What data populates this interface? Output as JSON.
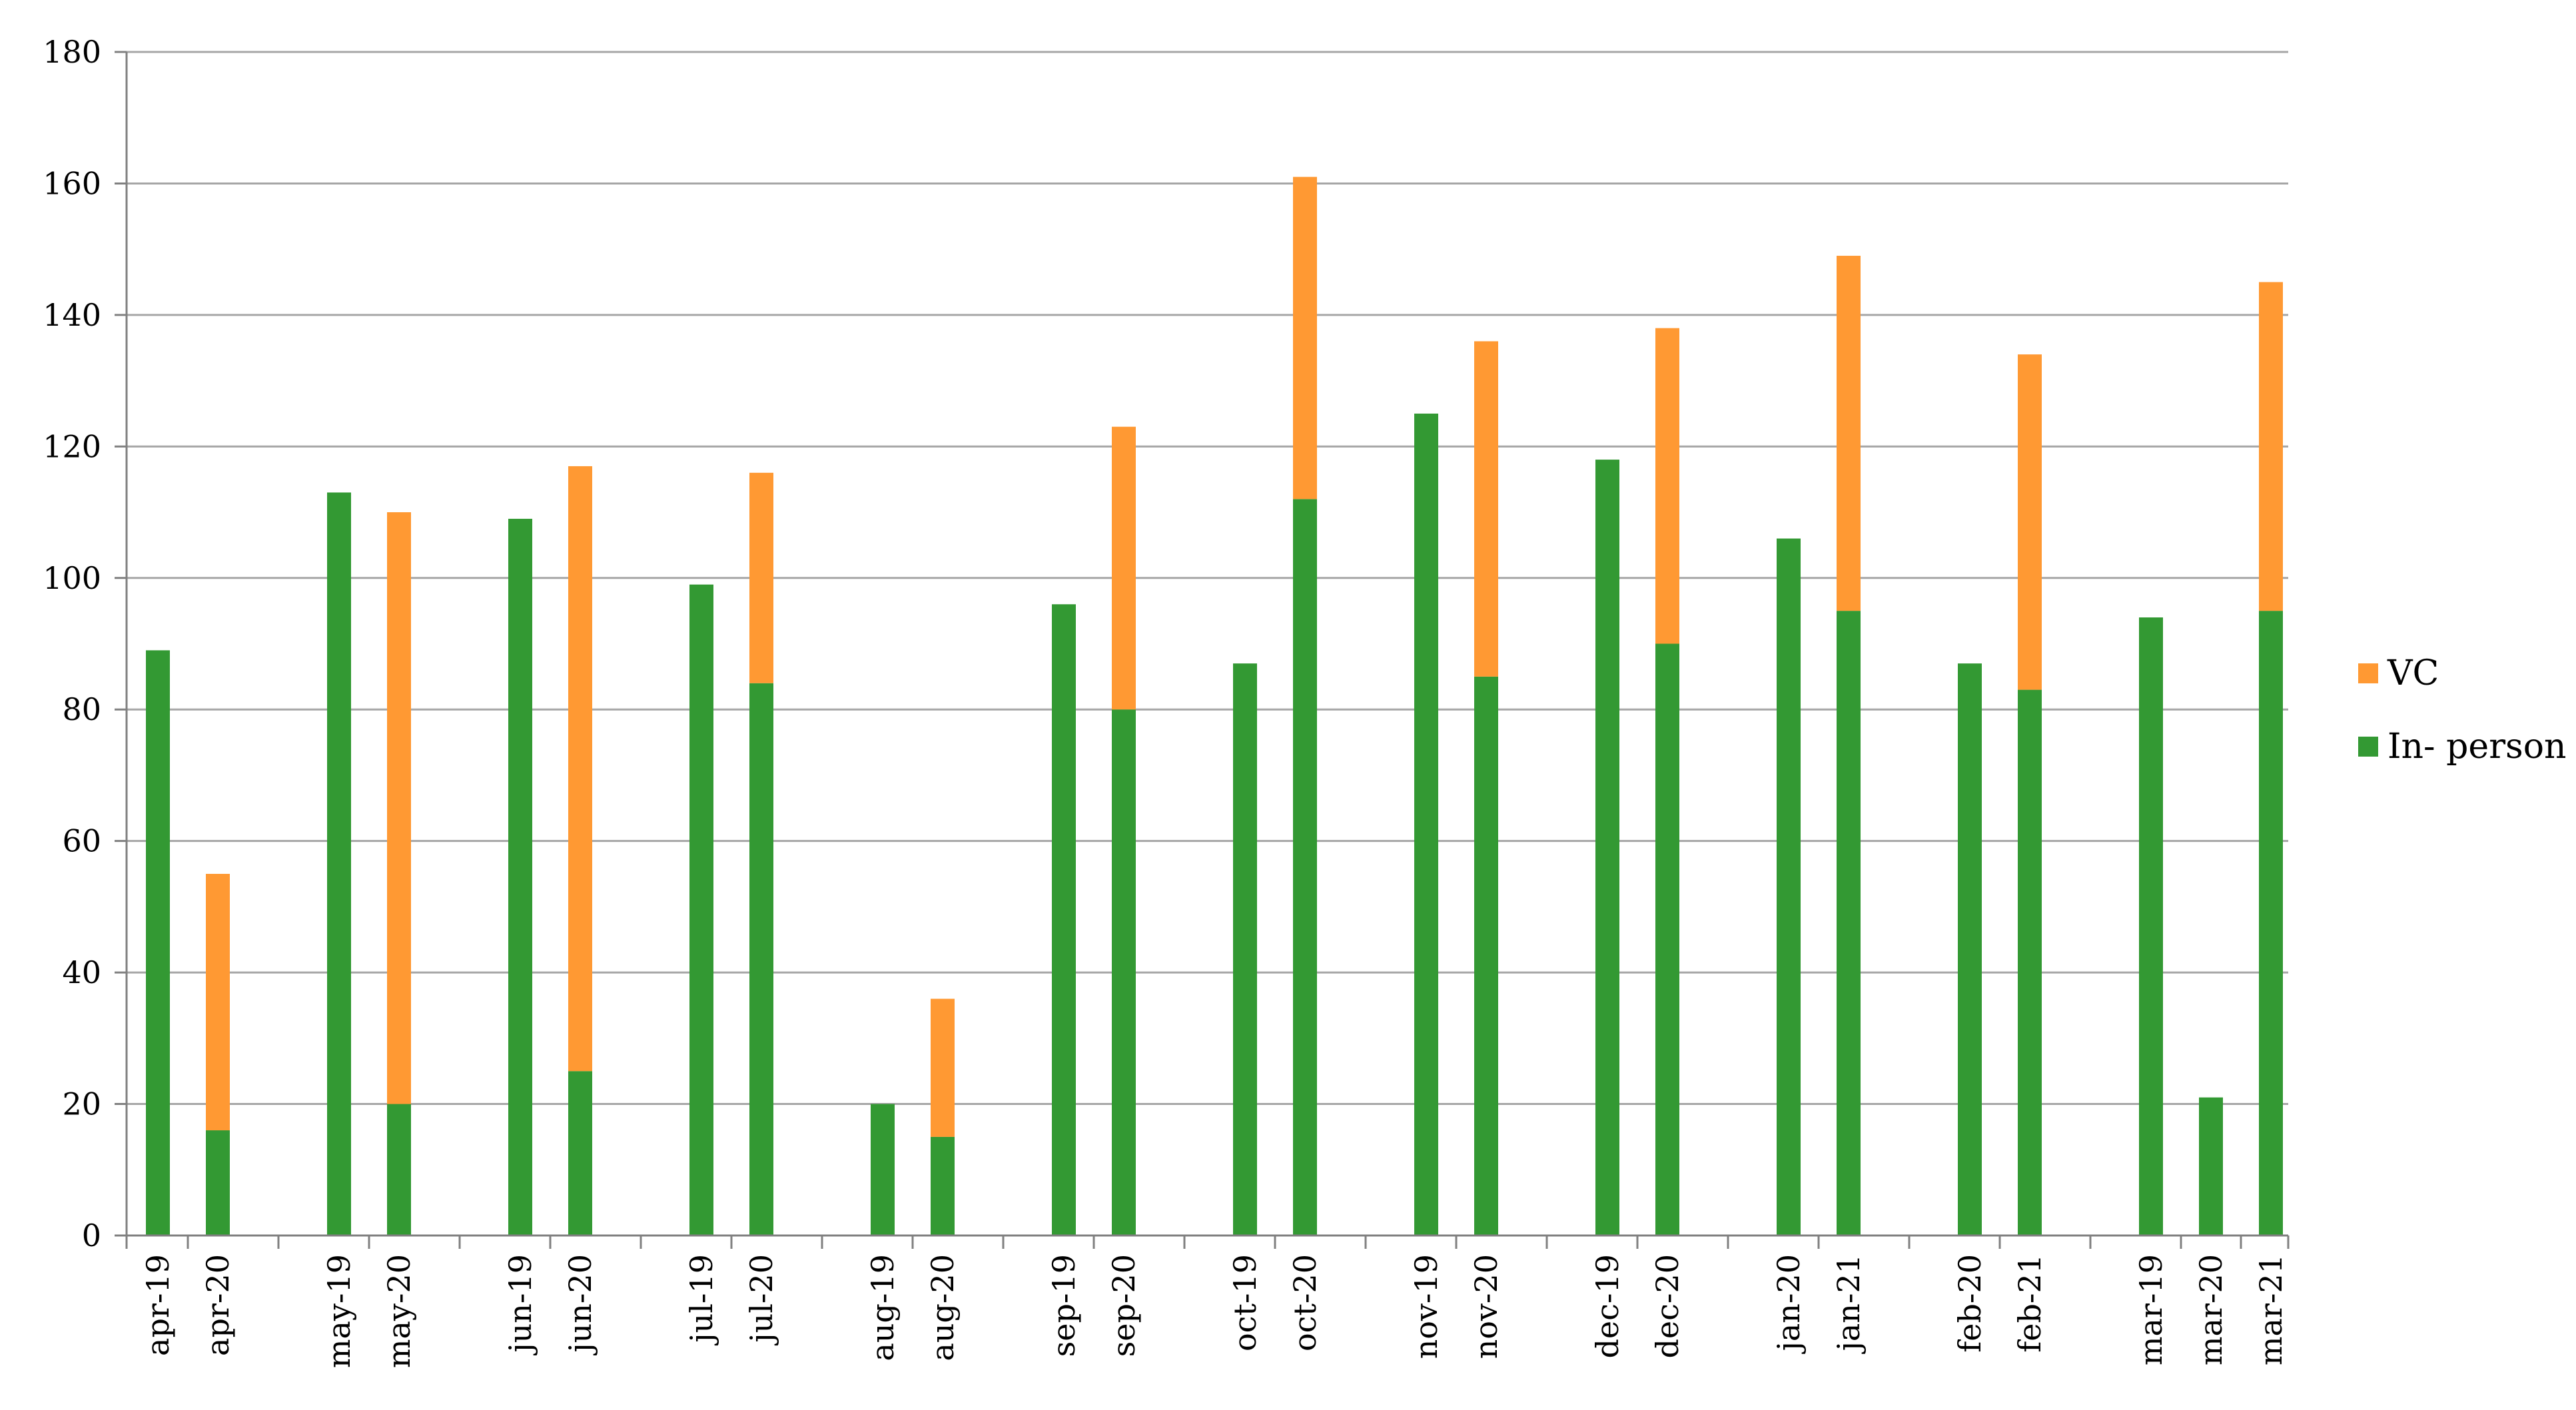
{
  "chart_data": {
    "type": "bar",
    "stacked": true,
    "categories": [
      "apr-19",
      "apr-20",
      "may-19",
      "may-20",
      "jun-19",
      "jun-20",
      "jul-19",
      "jul-20",
      "aug-19",
      "aug-20",
      "sep-19",
      "sep-20",
      "oct-19",
      "oct-20",
      "nov-19",
      "nov-20",
      "dec-19",
      "dec-20",
      "jan-20",
      "jan-21",
      "feb-20",
      "feb-21",
      "mar-19",
      "mar-20",
      "mar-21"
    ],
    "groups": [
      [
        "apr-19",
        "apr-20"
      ],
      [
        "may-19",
        "may-20"
      ],
      [
        "jun-19",
        "jun-20"
      ],
      [
        "jul-19",
        "jul-20"
      ],
      [
        "aug-19",
        "aug-20"
      ],
      [
        "sep-19",
        "sep-20"
      ],
      [
        "oct-19",
        "oct-20"
      ],
      [
        "nov-19",
        "nov-20"
      ],
      [
        "dec-19",
        "dec-20"
      ],
      [
        "jan-20",
        "jan-21"
      ],
      [
        "feb-20",
        "feb-21"
      ],
      [
        "mar-19",
        "mar-20",
        "mar-21"
      ]
    ],
    "series": [
      {
        "name": "In- person",
        "color": "#339933",
        "values": [
          89,
          16,
          113,
          20,
          109,
          25,
          99,
          84,
          20,
          15,
          96,
          80,
          87,
          112,
          125,
          85,
          118,
          90,
          106,
          95,
          87,
          83,
          94,
          21,
          95
        ]
      },
      {
        "name": "VC",
        "color": "#ff9933",
        "values": [
          0,
          39,
          0,
          90,
          0,
          92,
          0,
          32,
          0,
          21,
          0,
          43,
          0,
          49,
          0,
          51,
          0,
          48,
          0,
          54,
          0,
          51,
          0,
          0,
          50
        ]
      }
    ],
    "yticks": [
      "0",
      "20",
      "40",
      "60",
      "80",
      "100",
      "120",
      "140",
      "160",
      "180"
    ],
    "ylim": [
      0,
      180
    ],
    "grid": true,
    "legend_position": "right",
    "legend_order": [
      "VC",
      "In- person"
    ]
  }
}
